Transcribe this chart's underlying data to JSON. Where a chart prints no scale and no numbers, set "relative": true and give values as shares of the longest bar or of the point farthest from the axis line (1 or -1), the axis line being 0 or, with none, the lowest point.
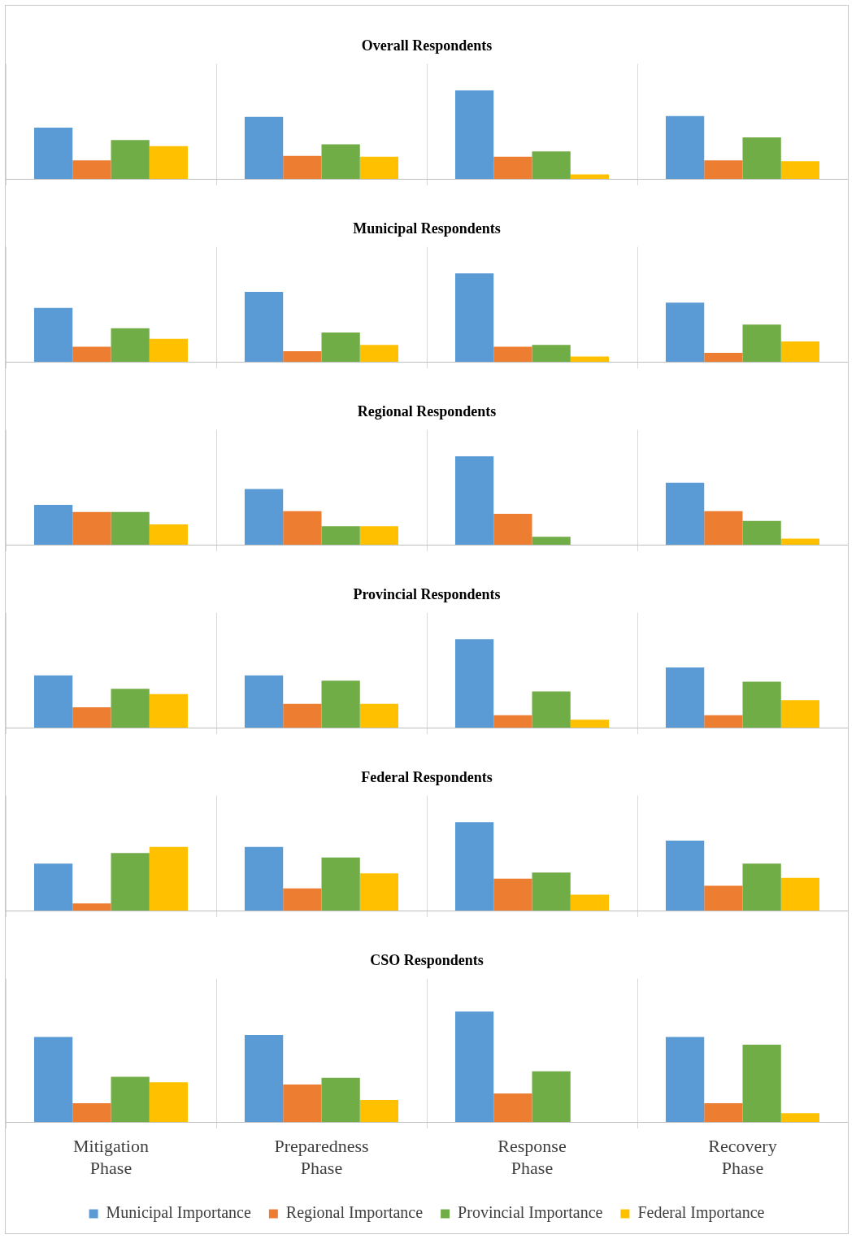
{
  "chart_data": [
    {
      "type": "bar",
      "title": "Overall Respondents",
      "relative": true,
      "grid": "x",
      "tick_labels": false,
      "categories": [
        null,
        null,
        null,
        null
      ],
      "series": [
        {
          "color": "#5b9bd5",
          "values": [
            0.58,
            0.7,
            1,
            0.71
          ]
        },
        {
          "color": "#ed7d31",
          "values": [
            0.21,
            0.26,
            0.25,
            0.21
          ]
        },
        {
          "color": "#70ad47",
          "values": [
            0.44,
            0.39,
            0.31,
            0.47
          ]
        },
        {
          "color": "#ffc000",
          "values": [
            0.37,
            0.25,
            0.05,
            0.2
          ]
        }
      ]
    },
    {
      "type": "bar",
      "title": "Municipal Respondents",
      "relative": true,
      "grid": "x",
      "tick_labels": false,
      "categories": [
        null,
        null,
        null,
        null
      ],
      "series": [
        {
          "color": "#5b9bd5",
          "values": [
            0.61,
            0.79,
            1,
            0.67
          ]
        },
        {
          "color": "#ed7d31",
          "values": [
            0.17,
            0.12,
            0.17,
            0.1
          ]
        },
        {
          "color": "#70ad47",
          "values": [
            0.38,
            0.33,
            0.19,
            0.42
          ]
        },
        {
          "color": "#ffc000",
          "values": [
            0.26,
            0.19,
            0.06,
            0.23
          ]
        }
      ]
    },
    {
      "type": "bar",
      "title": "Regional Respondents",
      "relative": true,
      "grid": "x",
      "tick_labels": false,
      "categories": [
        null,
        null,
        null,
        null
      ],
      "series": [
        {
          "color": "#5b9bd5",
          "values": [
            0.45,
            0.63,
            1,
            0.7
          ]
        },
        {
          "color": "#ed7d31",
          "values": [
            0.37,
            0.38,
            0.35,
            0.38
          ]
        },
        {
          "color": "#70ad47",
          "values": [
            0.37,
            0.21,
            0.09,
            0.27
          ]
        },
        {
          "color": "#ffc000",
          "values": [
            0.23,
            0.21,
            0,
            0.07
          ]
        }
      ]
    },
    {
      "type": "bar",
      "title": "Provincial Respondents",
      "relative": true,
      "grid": "x",
      "tick_labels": false,
      "categories": [
        null,
        null,
        null,
        null
      ],
      "series": [
        {
          "color": "#5b9bd5",
          "values": [
            0.59,
            0.59,
            1,
            0.68
          ]
        },
        {
          "color": "#ed7d31",
          "values": [
            0.23,
            0.27,
            0.14,
            0.14
          ]
        },
        {
          "color": "#70ad47",
          "values": [
            0.44,
            0.53,
            0.41,
            0.52
          ]
        },
        {
          "color": "#ffc000",
          "values": [
            0.38,
            0.27,
            0.09,
            0.31
          ]
        }
      ]
    },
    {
      "type": "bar",
      "title": "Federal Respondents",
      "relative": true,
      "grid": "x",
      "tick_labels": false,
      "categories": [
        null,
        null,
        null,
        null
      ],
      "series": [
        {
          "color": "#5b9bd5",
          "values": [
            0.53,
            0.72,
            1,
            0.79
          ]
        },
        {
          "color": "#ed7d31",
          "values": [
            0.08,
            0.25,
            0.36,
            0.28
          ]
        },
        {
          "color": "#70ad47",
          "values": [
            0.65,
            0.6,
            0.43,
            0.53
          ]
        },
        {
          "color": "#ffc000",
          "values": [
            0.72,
            0.42,
            0.18,
            0.37
          ]
        }
      ]
    },
    {
      "type": "bar",
      "title": "CSO Respondents",
      "relative": true,
      "grid": "x",
      "tick_labels": "x",
      "legend": "bottom",
      "categories": [
        "Mitigation Phase",
        "Preparedness Phase",
        "Response Phase",
        "Recovery Phase"
      ],
      "series": [
        {
          "name": "Municipal Importance",
          "color": "#5b9bd5",
          "values": [
            0.77,
            0.79,
            1,
            0.77
          ]
        },
        {
          "name": "Regional Importance",
          "color": "#ed7d31",
          "values": [
            0.17,
            0.34,
            0.26,
            0.17
          ]
        },
        {
          "name": "Provincial Importance",
          "color": "#70ad47",
          "values": [
            0.41,
            0.4,
            0.46,
            0.7
          ]
        },
        {
          "name": "Federal Importance",
          "color": "#ffc000",
          "values": [
            0.36,
            0.2,
            0,
            0.08
          ]
        }
      ]
    }
  ]
}
